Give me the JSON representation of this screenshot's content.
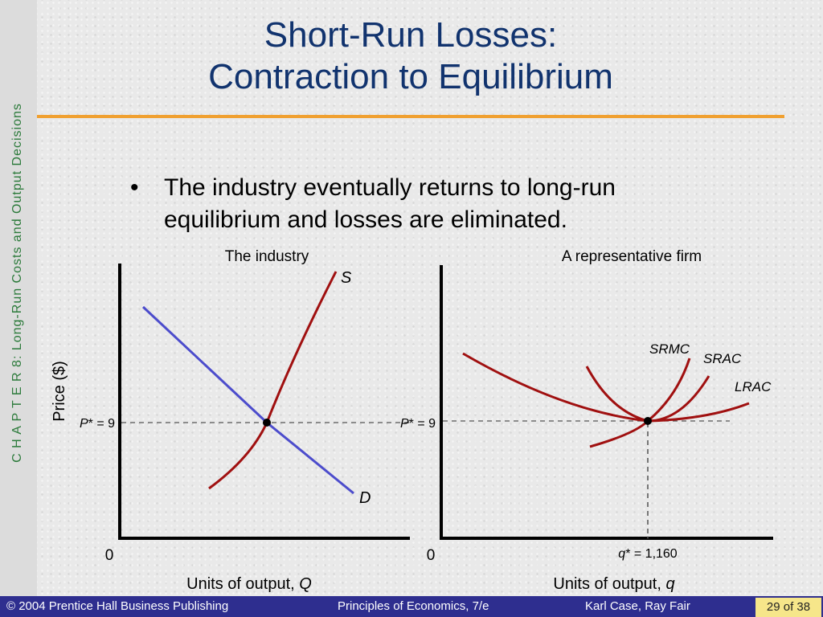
{
  "sidebar": {
    "chapter_prefix": "C H A P T E R  8:",
    "chapter_title": "Long-Run Costs and Output Decisions"
  },
  "slide": {
    "title_line1": "Short-Run Losses:",
    "title_line2": "Contraction to Equilibrium",
    "bullet_marker": "•",
    "bullet_text": "The industry eventually returns to long-run equilibrium and losses are eliminated."
  },
  "diagram": {
    "industry_panel": {
      "heading": "The industry",
      "y_axis_label": "Price ($)",
      "x_axis_label": "Units of output,",
      "x_axis_var": "Q",
      "origin": "0",
      "price_label_var": "P",
      "price_label_value": "* = 9",
      "supply_label": "S",
      "demand_label": "D"
    },
    "firm_panel": {
      "heading": "A representative firm",
      "origin": "0",
      "price_label_var": "P",
      "price_label_value": "* = 9",
      "quantity_label_var": "q",
      "quantity_label_value": "* = 1,160",
      "x_axis_label": "Units of output,",
      "x_axis_var": "q",
      "curves": [
        "SRMC",
        "SRAC",
        "LRAC"
      ]
    },
    "colors": {
      "supply": "#a01010",
      "demand": "#4c4ccc",
      "firm_curves": "#a01010",
      "axis": "#000000",
      "dashed": "#555555"
    }
  },
  "footer": {
    "publisher": "© 2004 Prentice Hall Business Publishing",
    "book": "Principles of Economics, 7/e",
    "authors": "Karl Case, Ray Fair",
    "page": "29 of 38"
  }
}
